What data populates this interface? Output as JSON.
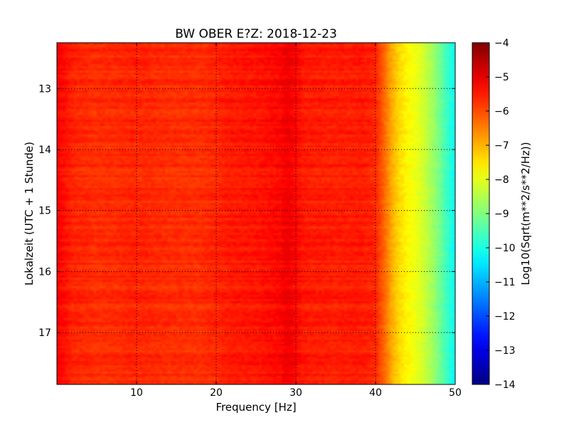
{
  "chart_data": {
    "type": "heatmap",
    "title": "BW OBER E?Z: 2018-12-23",
    "xlabel": "Frequency [Hz]",
    "ylabel": "Lokalzeit (UTC + 1 Stunde)",
    "xlim": [
      0,
      50
    ],
    "ylim": [
      12.25,
      17.85
    ],
    "y_inverted": true,
    "x_ticks": [
      10,
      20,
      30,
      40,
      50
    ],
    "x_tick_labels": [
      "10",
      "20",
      "30",
      "40",
      "50"
    ],
    "y_ticks": [
      13,
      14,
      15,
      16,
      17
    ],
    "y_tick_labels": [
      "13",
      "14",
      "15",
      "16",
      "17"
    ],
    "grid": true,
    "colormap": "jet",
    "colorbar": {
      "label": "Log10(Sqrt(m**2/s**2/Hz))",
      "min": -14,
      "max": -4,
      "ticks": [
        -4,
        -5,
        -6,
        -7,
        -8,
        -9,
        -10,
        -11,
        -12,
        -13,
        -14
      ],
      "tick_labels": [
        "−4",
        "−5",
        "−6",
        "−7",
        "−8",
        "−9",
        "−10",
        "−11",
        "−12",
        "−13",
        "−14"
      ]
    },
    "frequency_profile": {
      "frequency_hz": [
        0,
        2,
        5,
        8,
        10,
        12,
        15,
        18,
        20,
        22,
        25,
        28,
        29,
        31,
        35,
        38,
        40,
        41,
        42,
        43,
        44,
        45,
        46,
        47,
        48,
        49,
        50
      ],
      "value": [
        -5.2,
        -5.6,
        -5.7,
        -5.65,
        -5.6,
        -5.65,
        -5.7,
        -5.7,
        -5.6,
        -5.5,
        -5.45,
        -5.3,
        -5.1,
        -5.5,
        -5.55,
        -5.5,
        -5.6,
        -6.2,
        -6.9,
        -7.4,
        -7.7,
        -7.9,
        -8.2,
        -8.6,
        -9.1,
        -9.7,
        -10.2
      ]
    }
  }
}
